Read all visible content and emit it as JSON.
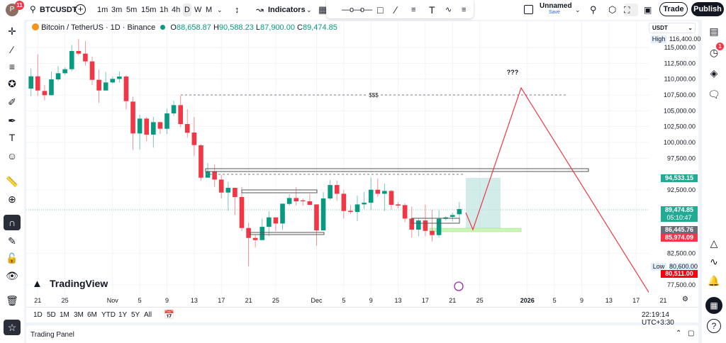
{
  "topbar": {
    "avatar_letter": "P",
    "notification_count": "11",
    "symbol": "BTCUSDT",
    "timeframes": [
      "1m",
      "3m",
      "5m",
      "15m",
      "1h",
      "4h",
      "D",
      "W",
      "M"
    ],
    "active_timeframe": "D",
    "indicators_label": "Indicators",
    "layout_name": "Unnamed",
    "save_label": "Save",
    "trade_label": "Trade",
    "publish_label": "Publish"
  },
  "legend": {
    "title": "Bitcoin / TetherUS · 1D · Binance",
    "o_label": "O",
    "o": "88,658.87",
    "h_label": "H",
    "h": "90,588.23",
    "l_label": "L",
    "l": "87,900.00",
    "c_label": "C",
    "c": "89,474.85"
  },
  "currency": "USDT",
  "price_badges": {
    "high_label": "High",
    "high": "116,400.00",
    "level_1": "94,533.15",
    "last_price": "89,474.85",
    "countdown": "05:10:47",
    "level_2": "86,445.76",
    "level_3": "85,974.09",
    "low_label": "Low",
    "low": "80,600.00",
    "level_4": "80,511.00"
  },
  "annotations": {
    "liquidity_label": "$$$",
    "question_label": "???"
  },
  "watermark": "TradingView",
  "ranges": [
    "1D",
    "5D",
    "1M",
    "3M",
    "6M",
    "YTD",
    "1Y",
    "5Y",
    "All"
  ],
  "clock": "22:19:14 UTC+3:30",
  "trading_panel_label": "Trading Panel",
  "right_sidebar": {
    "alert_badge": "1"
  },
  "colors": {
    "up": "#089981",
    "down": "#f23645",
    "accent": "#2962ff",
    "projection": "#f23645",
    "zone": "#b2dfdb"
  },
  "chart_data": {
    "type": "candlestick",
    "y_ticks": [
      "115,000.00",
      "112,500.00",
      "110,000.00",
      "107,500.00",
      "105,000.00",
      "102,500.00",
      "100,000.00",
      "97,500.00",
      "92,500.00",
      "82,500.00",
      "77,500.00"
    ],
    "y_tick_values": [
      115000,
      112500,
      110000,
      107500,
      105000,
      102500,
      100000,
      97500,
      92500,
      82500,
      77500
    ],
    "x_ticks": [
      {
        "label": "21",
        "date": "2025-10-21"
      },
      {
        "label": "25",
        "date": "2025-10-25"
      },
      {
        "label": "Nov",
        "date": "2025-11-01"
      },
      {
        "label": "5",
        "date": "2025-11-05"
      },
      {
        "label": "9",
        "date": "2025-11-09"
      },
      {
        "label": "13",
        "date": "2025-11-13"
      },
      {
        "label": "17",
        "date": "2025-11-17"
      },
      {
        "label": "21",
        "date": "2025-11-21"
      },
      {
        "label": "25",
        "date": "2025-11-25"
      },
      {
        "label": "Dec",
        "date": "2025-12-01"
      },
      {
        "label": "5",
        "date": "2025-12-05"
      },
      {
        "label": "9",
        "date": "2025-12-09"
      },
      {
        "label": "13",
        "date": "2025-12-13"
      },
      {
        "label": "17",
        "date": "2025-12-17"
      },
      {
        "label": "21",
        "date": "2025-12-21"
      },
      {
        "label": "25",
        "date": "2025-12-25"
      },
      {
        "label": "2026",
        "date": "2026-01-01"
      },
      {
        "label": "5",
        "date": "2026-01-05"
      },
      {
        "label": "9",
        "date": "2026-01-09"
      },
      {
        "label": "13",
        "date": "2026-01-13"
      },
      {
        "label": "17",
        "date": "2026-01-17"
      },
      {
        "label": "21",
        "date": "2026-01-21"
      }
    ],
    "candles": [
      [
        "2025-10-20",
        108505,
        111678,
        107310,
        110446
      ],
      [
        "2025-10-21",
        110446,
        113918,
        107385,
        108206
      ],
      [
        "2025-10-22",
        108132,
        109065,
        106638,
        107460
      ],
      [
        "2025-10-23",
        107460,
        111193,
        107460,
        109961
      ],
      [
        "2025-10-24",
        109961,
        112051,
        109699,
        110931
      ],
      [
        "2025-10-25",
        110931,
        111865,
        110633,
        111566
      ],
      [
        "2025-10-26",
        111566,
        115411,
        111230,
        114440
      ],
      [
        "2025-10-27",
        114440,
        116344,
        113768,
        114030
      ],
      [
        "2025-10-28",
        114030,
        116045,
        112126,
        112798
      ],
      [
        "2025-10-29",
        112798,
        113544,
        109065,
        109886
      ],
      [
        "2025-10-30",
        109886,
        111491,
        106228,
        108206
      ],
      [
        "2025-10-31",
        108206,
        111118,
        108206,
        109475
      ],
      [
        "2025-11-01",
        109475,
        110371,
        109326,
        110035
      ],
      [
        "2025-11-02",
        110035,
        111193,
        109438,
        110409
      ],
      [
        "2025-11-03",
        110409,
        110633,
        105219,
        106526
      ],
      [
        "2025-11-04",
        106452,
        107198,
        98800,
        101412
      ],
      [
        "2025-11-05",
        101412,
        104398,
        98874,
        103764
      ],
      [
        "2025-11-06",
        103764,
        104025,
        100218,
        101226
      ],
      [
        "2025-11-07",
        101226,
        104025,
        99173,
        103204
      ],
      [
        "2025-11-08",
        103204,
        103279,
        101338,
        102158
      ],
      [
        "2025-11-09",
        102158,
        105332,
        101338,
        104585
      ],
      [
        "2025-11-10",
        104585,
        106601,
        104212,
        105891
      ],
      [
        "2025-11-11",
        105891,
        107385,
        102420,
        102905
      ],
      [
        "2025-11-12",
        102905,
        105257,
        100741,
        101524
      ],
      [
        "2025-11-13",
        101561,
        104025,
        97866,
        99583
      ],
      [
        "2025-11-14",
        99546,
        99732,
        93946,
        94431
      ],
      [
        "2025-11-15",
        94431,
        96746,
        94431,
        95402
      ],
      [
        "2025-11-16",
        95402,
        96522,
        92976,
        94133
      ],
      [
        "2025-11-17",
        94133,
        94879,
        91147,
        92080
      ],
      [
        "2025-11-18",
        92080,
        93760,
        89206,
        92827
      ],
      [
        "2025-11-19",
        92827,
        92827,
        88534,
        91371
      ],
      [
        "2025-11-20",
        91371,
        92976,
        85996,
        86481
      ],
      [
        "2025-11-21",
        86481,
        87302,
        80434,
        84913
      ],
      [
        "2025-11-22",
        84913,
        85361,
        83383,
        84577
      ],
      [
        "2025-11-23",
        84574,
        87971,
        84574,
        86665
      ],
      [
        "2025-11-24",
        86665,
        89091,
        85171,
        88158
      ],
      [
        "2025-11-25",
        88158,
        88158,
        85993,
        87187
      ],
      [
        "2025-11-26",
        87187,
        90323,
        86180,
        90323
      ],
      [
        "2025-11-27",
        90286,
        91816,
        90025,
        91219
      ],
      [
        "2025-11-28",
        91219,
        92936,
        90025,
        90697
      ],
      [
        "2025-11-29",
        90846,
        91145,
        90025,
        90697
      ],
      [
        "2025-11-30",
        90697,
        91891,
        90137,
        90137
      ],
      [
        "2025-12-01",
        90211,
        90211,
        83678,
        86105
      ],
      [
        "2025-12-02",
        86105,
        92152,
        86105,
        91145
      ],
      [
        "2025-12-03",
        91145,
        94056,
        90883,
        93272
      ],
      [
        "2025-12-04",
        93272,
        93944,
        90771,
        91891
      ],
      [
        "2025-12-05",
        91891,
        92526,
        87971,
        89166
      ],
      [
        "2025-12-06",
        89203,
        90137,
        88718,
        89017
      ],
      [
        "2025-12-07",
        89017,
        91630,
        87598,
        90211
      ],
      [
        "2025-12-08",
        90211,
        92152,
        89465,
        90473
      ],
      [
        "2025-12-09",
        90473,
        94430,
        89353,
        92526
      ],
      [
        "2025-12-10",
        92526,
        94318,
        91406,
        91891
      ],
      [
        "2025-12-11",
        91891,
        93496,
        89166,
        92339
      ],
      [
        "2025-12-12",
        92339,
        92526,
        89353,
        90137
      ],
      [
        "2025-12-13",
        90211,
        90585,
        89577,
        90025
      ],
      [
        "2025-12-14",
        90099,
        90398,
        87411,
        87971
      ],
      [
        "2025-12-15",
        87971,
        89913,
        84985,
        86217
      ],
      [
        "2025-12-16",
        86217,
        87971,
        85171,
        87673
      ],
      [
        "2025-12-17",
        87673,
        90211,
        85171,
        86030
      ],
      [
        "2025-12-18",
        86030,
        89353,
        84350,
        85358
      ],
      [
        "2025-12-19",
        85358,
        89278,
        84985,
        87934
      ],
      [
        "2025-12-20",
        87934,
        88345,
        87673,
        88158
      ],
      [
        "2025-12-21",
        88233,
        88905,
        87486,
        88531
      ],
      [
        "2025-12-22",
        88658.87,
        90588.23,
        87900,
        89474.85
      ]
    ],
    "ylim": [
      76000,
      118500
    ]
  }
}
